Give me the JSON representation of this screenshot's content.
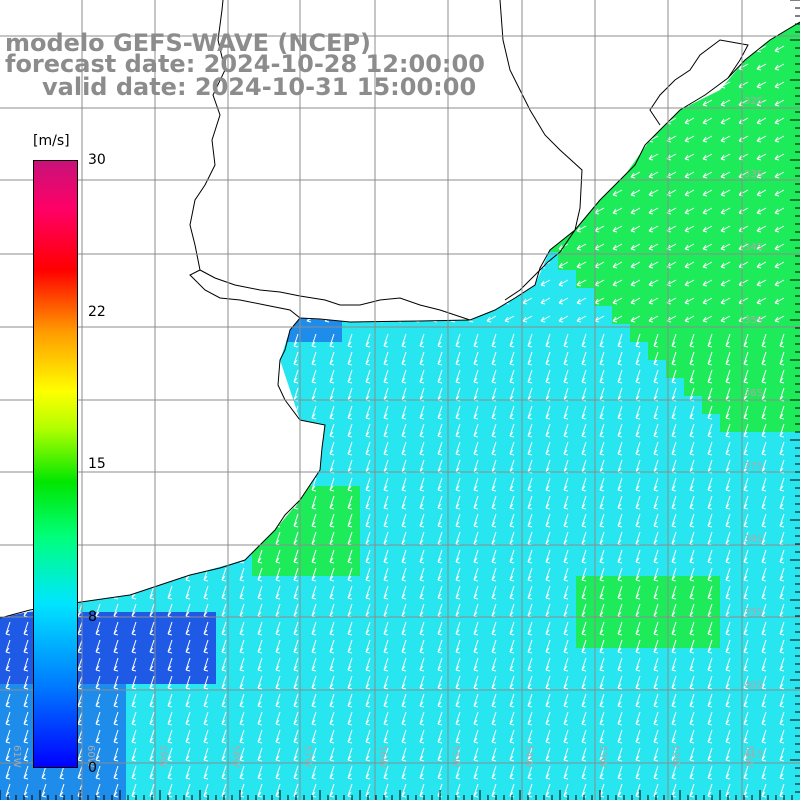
{
  "title": {
    "line1": "modelo GEFS-WAVE (NCEP)",
    "line2": "forecast date: 2024-10-28 12:00:00",
    "line3": "valid date: 2024-10-31 15:00:00"
  },
  "colorbar": {
    "unit": "[m/s]",
    "ticks": [
      "30",
      "22",
      "15",
      "8",
      "0"
    ],
    "min": 0,
    "max": 30
  },
  "lat_labels": [
    "32S",
    "33S",
    "34S",
    "35S",
    "36S",
    "37S",
    "38S",
    "39S",
    "40S",
    "41S"
  ],
  "lon_labels": [
    "61W",
    "60W",
    "59W",
    "58W",
    "57W",
    "56W",
    "55W",
    "54W",
    "53W",
    "52W",
    "51W"
  ],
  "colors": {
    "land": "#ffffff",
    "coast": "#000000",
    "grid": "#8c8c8c",
    "arrows": "#ffffff",
    "title": "#8c8c8c"
  },
  "field_description_colors": {
    "cyan": "#28e6f0",
    "green": "#1eeb5a",
    "blue": "#1e8ceb",
    "dark_blue": "#1e5ae6"
  }
}
